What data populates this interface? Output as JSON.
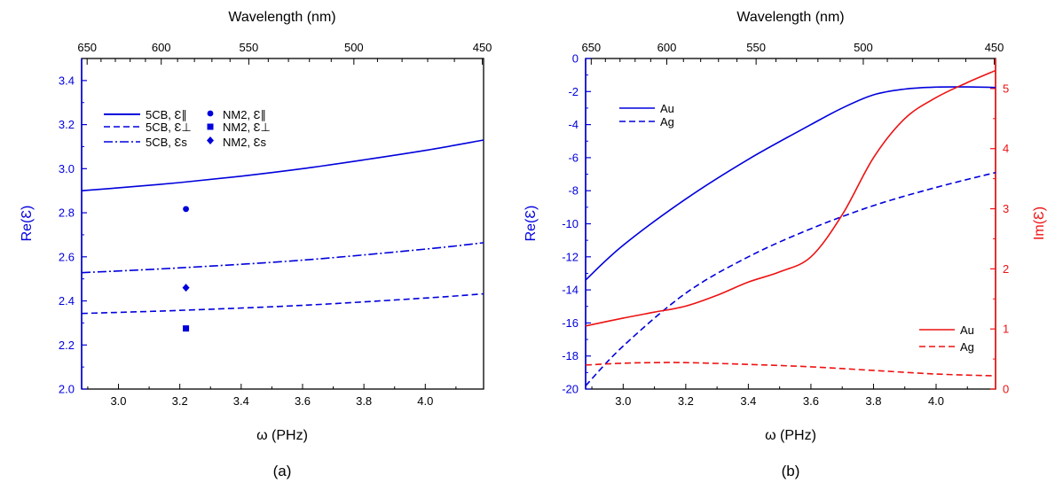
{
  "chart_data": [
    {
      "type": "line",
      "panel_label": "(a)",
      "xlabel": "ω (PHz)",
      "x2label": "Wavelength (nm)",
      "ylabel": "Re(Ɛ)",
      "xlim": [
        2.88,
        4.19
      ],
      "ylim": [
        2.0,
        3.5
      ],
      "xticks": [
        "3.0",
        "3.2",
        "3.4",
        "3.6",
        "3.8",
        "4.0"
      ],
      "yticks": [
        "2.0",
        "2.2",
        "2.4",
        "2.6",
        "2.8",
        "3.0",
        "3.2",
        "3.4"
      ],
      "x2ticks": [
        "650",
        "600",
        "550",
        "500",
        "450"
      ],
      "legend_position": "top-left",
      "series": [
        {
          "name": "5CB, Ɛ∥",
          "style": "solid",
          "color": "#0000dd",
          "x": [
            2.88,
            3.0,
            3.2,
            3.4,
            3.6,
            3.8,
            4.0,
            4.19
          ],
          "y": [
            2.9,
            2.913,
            2.937,
            2.966,
            3.0,
            3.04,
            3.083,
            3.13
          ]
        },
        {
          "name": "5CB, Ɛ⊥",
          "style": "dashed",
          "color": "#0000dd",
          "x": [
            2.88,
            3.2,
            3.6,
            4.0,
            4.19
          ],
          "y": [
            2.343,
            2.357,
            2.38,
            2.413,
            2.432
          ]
        },
        {
          "name": "5CB, Ɛs",
          "style": "dashdot",
          "color": "#0000dd",
          "x": [
            2.88,
            3.2,
            3.6,
            4.0,
            4.19
          ],
          "y": [
            2.528,
            2.55,
            2.585,
            2.635,
            2.664
          ]
        },
        {
          "name": "NM2, Ɛ∥",
          "style": "marker",
          "marker": "circle",
          "color": "#0000dd",
          "x": [
            3.22
          ],
          "y": [
            2.817
          ]
        },
        {
          "name": "NM2, Ɛ⊥",
          "style": "marker",
          "marker": "square",
          "color": "#0000dd",
          "x": [
            3.22
          ],
          "y": [
            2.275
          ]
        },
        {
          "name": "NM2, Ɛs",
          "style": "marker",
          "marker": "diamond",
          "color": "#0000dd",
          "x": [
            3.22
          ],
          "y": [
            2.46
          ]
        }
      ]
    },
    {
      "type": "line",
      "panel_label": "(b)",
      "xlabel": "ω (PHz)",
      "x2label": "Wavelength (nm)",
      "ylabel": "Re(Ɛ)",
      "y2label": "Im(Ɛ)",
      "xlim": [
        2.88,
        4.19
      ],
      "ylim": [
        -20,
        0
      ],
      "y2lim": [
        0,
        5.5
      ],
      "xticks": [
        "3.0",
        "3.2",
        "3.4",
        "3.6",
        "3.8",
        "4.0"
      ],
      "yticks": [
        "-20",
        "-18",
        "-16",
        "-14",
        "-12",
        "-10",
        "-8",
        "-6",
        "-4",
        "-2",
        "0"
      ],
      "y2ticks": [
        "0",
        "1",
        "2",
        "3",
        "4",
        "5"
      ],
      "x2ticks": [
        "650",
        "600",
        "550",
        "500",
        "450"
      ],
      "legend_positions": {
        "re": "top-left",
        "im": "bottom-right"
      },
      "series": [
        {
          "name": "Au",
          "axis": "left",
          "style": "solid",
          "color": "#0000dd",
          "x": [
            2.88,
            3.0,
            3.2,
            3.4,
            3.6,
            3.7,
            3.8,
            3.9,
            4.0,
            4.1,
            4.19
          ],
          "y": [
            -13.4,
            -11.3,
            -8.5,
            -6.1,
            -4.0,
            -3.0,
            -2.2,
            -1.85,
            -1.73,
            -1.72,
            -1.75
          ]
        },
        {
          "name": "Ag",
          "axis": "left",
          "style": "dashed",
          "color": "#0000dd",
          "x": [
            2.88,
            3.0,
            3.2,
            3.4,
            3.6,
            3.8,
            4.0,
            4.19
          ],
          "y": [
            -19.8,
            -17.4,
            -14.2,
            -12.0,
            -10.3,
            -8.9,
            -7.8,
            -6.9
          ]
        },
        {
          "name": "Au",
          "axis": "right",
          "style": "solid",
          "color": "#ee1111",
          "x": [
            2.88,
            3.0,
            3.1,
            3.2,
            3.3,
            3.4,
            3.5,
            3.6,
            3.7,
            3.8,
            3.9,
            4.0,
            4.1,
            4.19
          ],
          "y": [
            1.05,
            1.18,
            1.28,
            1.38,
            1.56,
            1.78,
            1.95,
            2.2,
            2.9,
            3.85,
            4.5,
            4.85,
            5.1,
            5.3
          ]
        },
        {
          "name": "Ag",
          "axis": "right",
          "style": "dashed",
          "color": "#ee1111",
          "x": [
            2.88,
            3.0,
            3.1,
            3.2,
            3.4,
            3.6,
            3.8,
            4.0,
            4.19
          ],
          "y": [
            0.4,
            0.43,
            0.44,
            0.44,
            0.41,
            0.37,
            0.31,
            0.25,
            0.22
          ]
        }
      ]
    }
  ]
}
